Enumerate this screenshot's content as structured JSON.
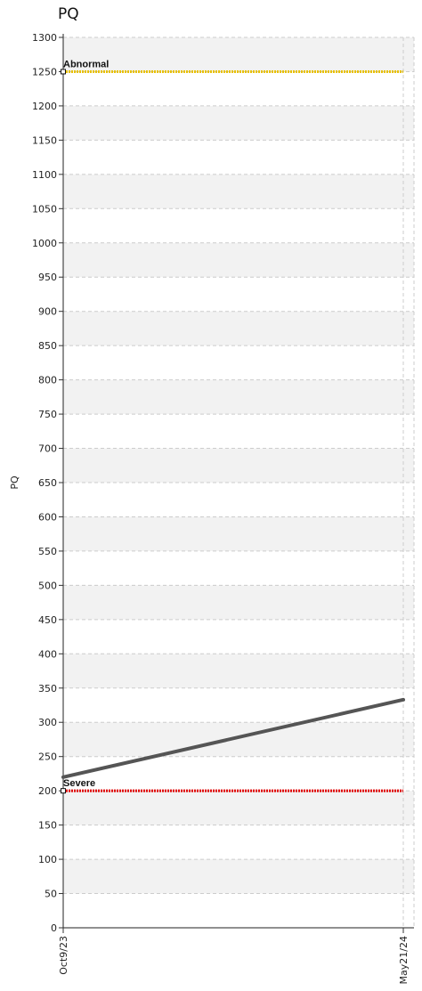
{
  "chart_data": {
    "type": "line",
    "title": "PQ",
    "ylabel": "PQ",
    "xlabel": "",
    "ylim": [
      0,
      1300
    ],
    "ytick_step": 50,
    "x": [
      "Oct9/23",
      "May21/24"
    ],
    "grid": true,
    "series": [
      {
        "values": [
          220,
          333
        ],
        "color": "#555555"
      }
    ],
    "reference_lines": [
      {
        "label": "Abnormal",
        "value": 1250,
        "color": "#e8c000"
      },
      {
        "label": "Severe",
        "value": 200,
        "color": "#e00000"
      }
    ]
  }
}
